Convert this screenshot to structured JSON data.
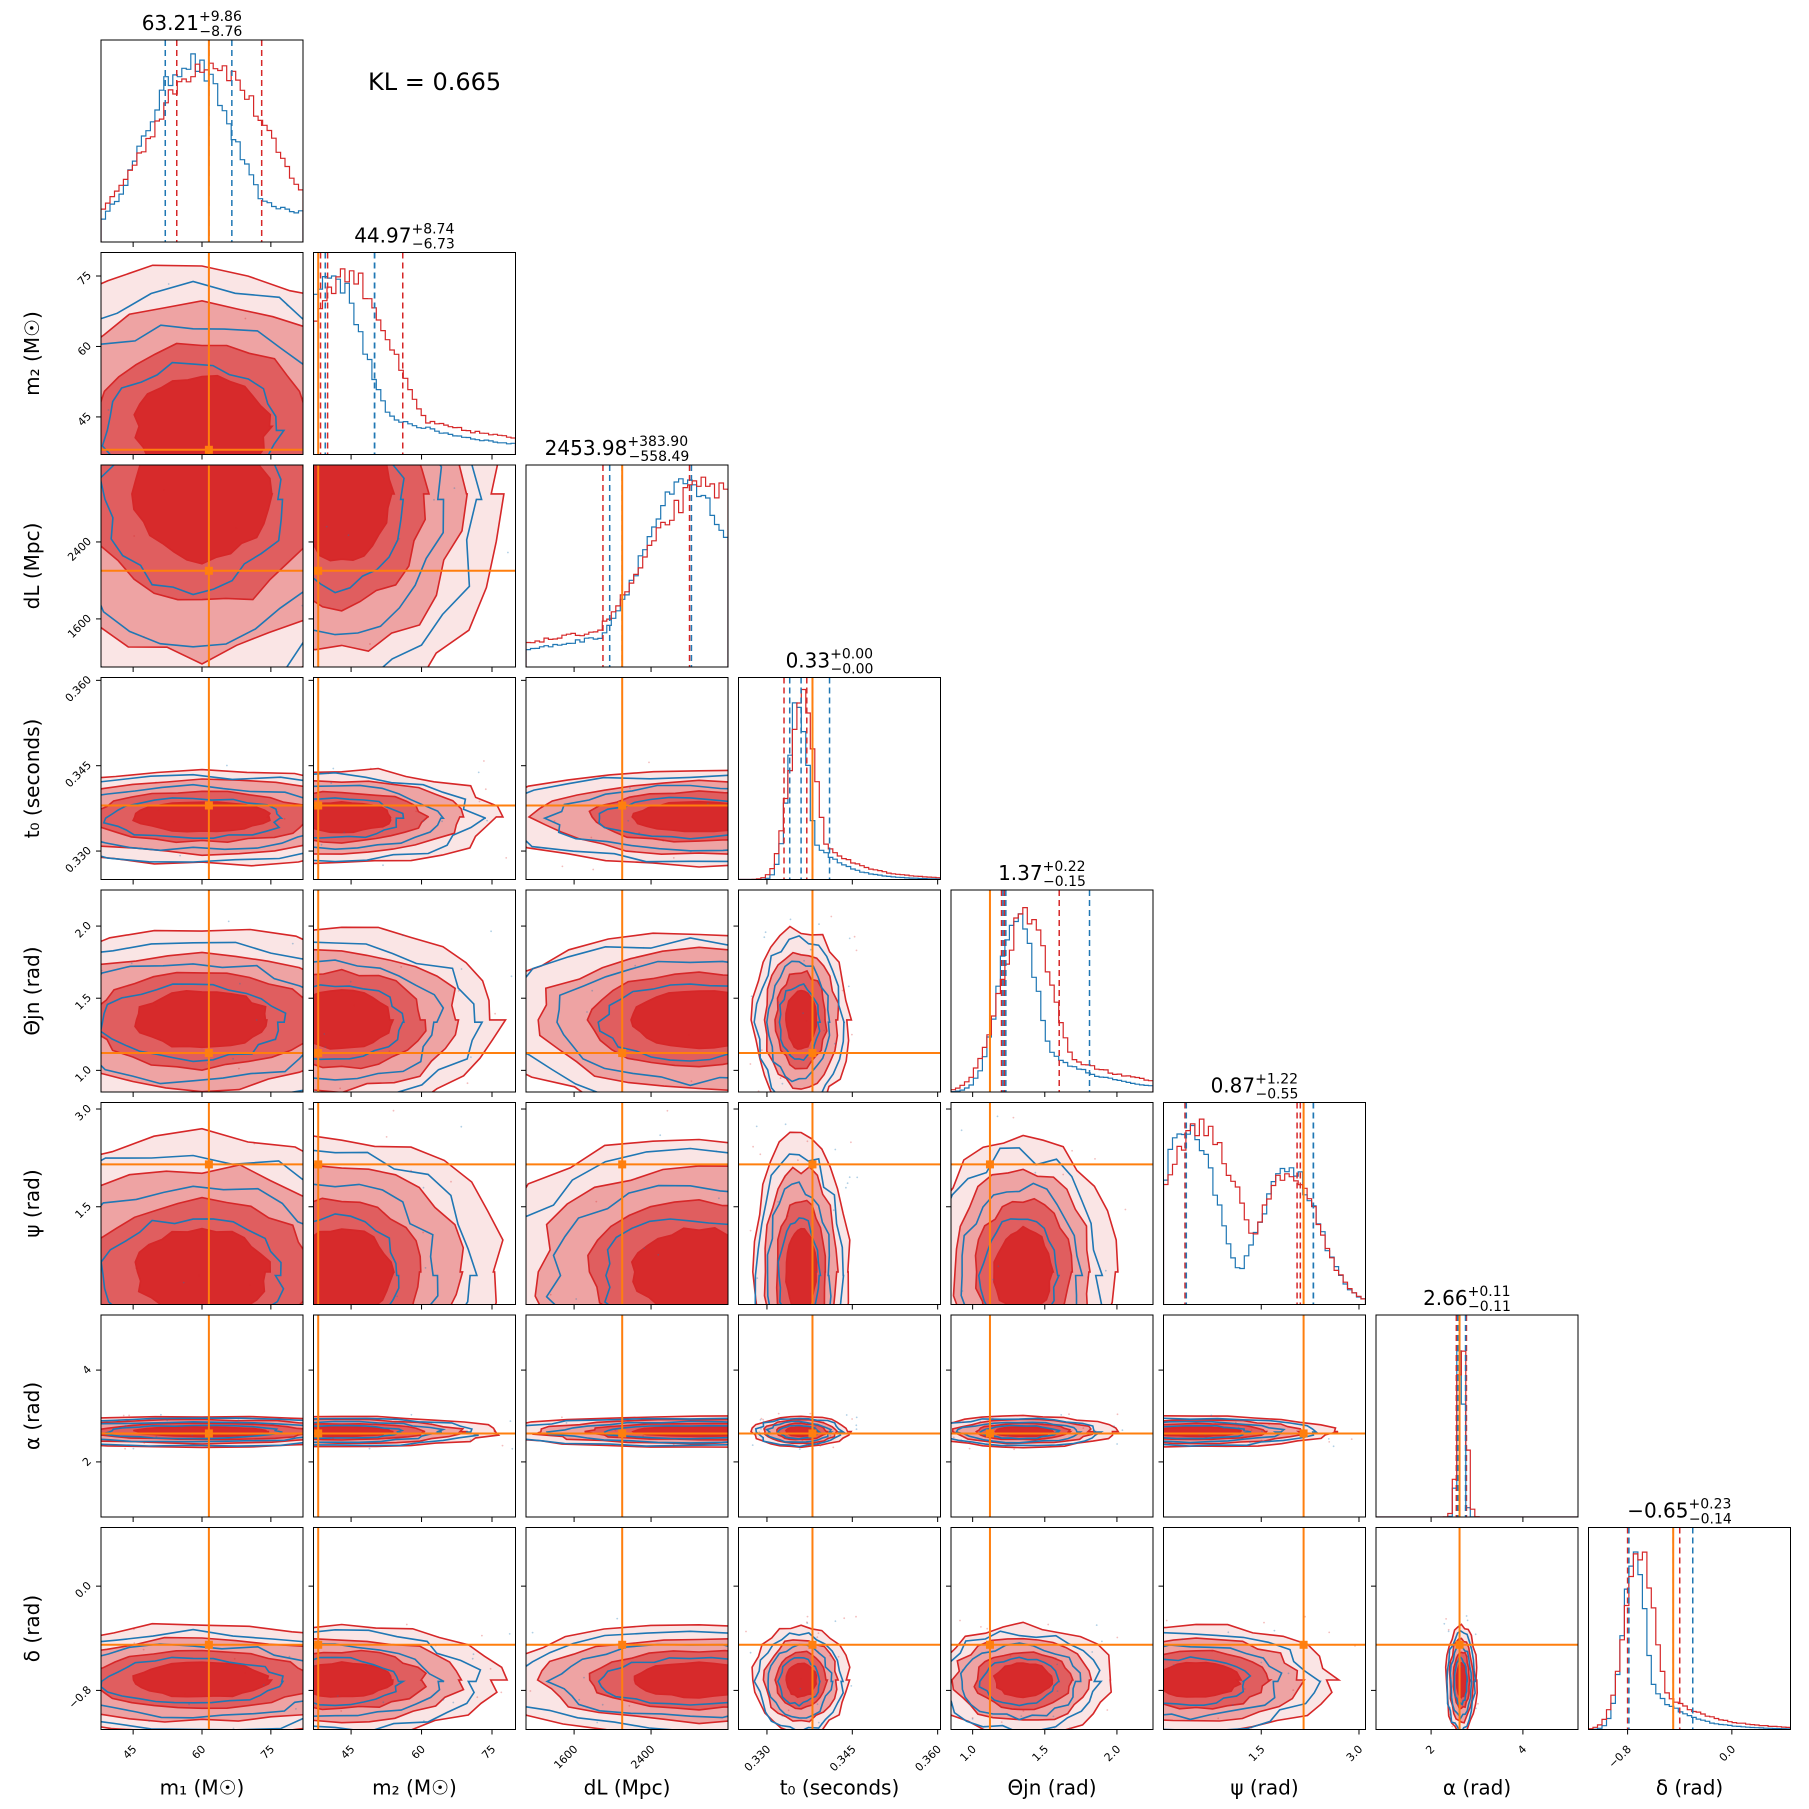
{
  "kl_label": "KL = 0.665",
  "chart_data": {
    "type": "corner",
    "colors": {
      "posterior_a": "#d62728",
      "posterior_b": "#1f77b4",
      "truth": "#ff7f0e"
    },
    "parameters": [
      {
        "id": "m1",
        "label": "m₁ (M☉)",
        "range": [
          38,
          82
        ],
        "ticks": [
          45,
          60,
          75
        ],
        "tick_labels": [
          "45",
          "60",
          "75"
        ],
        "truth": 61.5,
        "title_median": "63.21",
        "title_plus": "+9.86",
        "title_minus": "−8.76",
        "quantiles_red": [
          54.5,
          61.5,
          73.0
        ],
        "quantiles_blue": [
          52.0,
          61.5,
          66.5
        ],
        "peak": 60,
        "spread": 11,
        "skew": 0.8
      },
      {
        "id": "m2",
        "label": "m₂ (M☉)",
        "range": [
          37,
          80
        ],
        "ticks": [
          45,
          60,
          75
        ],
        "tick_labels": [
          "45",
          "60",
          "75"
        ],
        "truth": 38.0,
        "title_median": "44.97",
        "title_plus": "+8.74",
        "title_minus": "−6.73",
        "quantiles_red": [
          38.5,
          40.0,
          56.0
        ],
        "quantiles_blue": [
          39.5,
          50.0,
          50.0
        ],
        "peak": 43,
        "spread": 8,
        "skew": 1.2
      },
      {
        "id": "dL",
        "label": "dL (Mpc)",
        "range": [
          1100,
          3200
        ],
        "ticks": [
          1600,
          2400
        ],
        "tick_labels": [
          "1600",
          "2400"
        ],
        "truth": 2100,
        "title_median": "2453.98",
        "title_plus": "+383.90",
        "title_minus": "−558.49",
        "quantiles_red": [
          1900,
          2100,
          2800
        ],
        "quantiles_blue": [
          1970,
          2100,
          2820
        ],
        "peak": 2900,
        "spread": 550,
        "skew": -1.2
      },
      {
        "id": "t0",
        "label": "t₀ (seconds)",
        "range": [
          0.325,
          0.3605
        ],
        "ticks": [
          0.33,
          0.345,
          0.36
        ],
        "tick_labels": [
          "0.330",
          "0.345",
          "0.360"
        ],
        "truth": 0.338,
        "title_median": "0.33",
        "title_plus": "+0.00",
        "title_minus": "−0.00",
        "quantiles_red": [
          0.333,
          0.337,
          0.338
        ],
        "quantiles_blue": [
          0.334,
          0.336,
          0.341
        ],
        "peak": 0.336,
        "spread": 0.002,
        "skew": 0.5
      },
      {
        "id": "theta",
        "label": "Θjn (rad)",
        "range": [
          0.85,
          2.25
        ],
        "ticks": [
          1.0,
          1.5,
          2.0
        ],
        "tick_labels": [
          "1.0",
          "1.5",
          "2.0"
        ],
        "truth": 1.12,
        "title_median": "1.37",
        "title_plus": "+0.22",
        "title_minus": "−0.15",
        "quantiles_red": [
          1.22,
          1.2,
          1.6
        ],
        "quantiles_blue": [
          1.21,
          1.23,
          1.81
        ],
        "peak": 1.35,
        "spread": 0.15,
        "skew": 1.0
      },
      {
        "id": "psi",
        "label": "ψ (rad)",
        "range": [
          0.0,
          3.1
        ],
        "ticks": [
          1.5,
          3.0
        ],
        "tick_labels": [
          "1.5",
          "3.0"
        ],
        "truth": 2.15,
        "title_median": "0.87",
        "title_plus": "+1.22",
        "title_minus": "−0.55",
        "quantiles_red": [
          0.33,
          2.1,
          2.05
        ],
        "quantiles_blue": [
          0.35,
          2.3,
          2.3
        ],
        "peak": 0.5,
        "spread": 0.5,
        "skew": 0.0
      },
      {
        "id": "alpha",
        "label": "α (rad)",
        "range": [
          0.8,
          5.2
        ],
        "ticks": [
          2,
          4
        ],
        "tick_labels": [
          "2",
          "4"
        ],
        "truth": 2.62,
        "title_median": "2.66",
        "title_plus": "+0.11",
        "title_minus": "−0.11",
        "quantiles_red": [
          2.55,
          2.62,
          2.77
        ],
        "quantiles_blue": [
          2.58,
          2.62,
          2.75
        ],
        "peak": 2.66,
        "spread": 0.08,
        "skew": 0.0
      },
      {
        "id": "delta",
        "label": "δ (rad)",
        "range": [
          -1.1,
          0.45
        ],
        "ticks": [
          -0.8,
          0.0
        ],
        "tick_labels": [
          "−0.8",
          "0.0"
        ],
        "truth": -0.45,
        "title_median": "−0.65",
        "title_plus": "+0.23",
        "title_minus": "−0.14",
        "quantiles_red": [
          -0.8,
          -0.45,
          -0.4
        ],
        "quantiles_blue": [
          -0.79,
          -0.45,
          -0.3
        ],
        "peak": -0.72,
        "spread": 0.1,
        "skew": 1.0
      }
    ]
  }
}
